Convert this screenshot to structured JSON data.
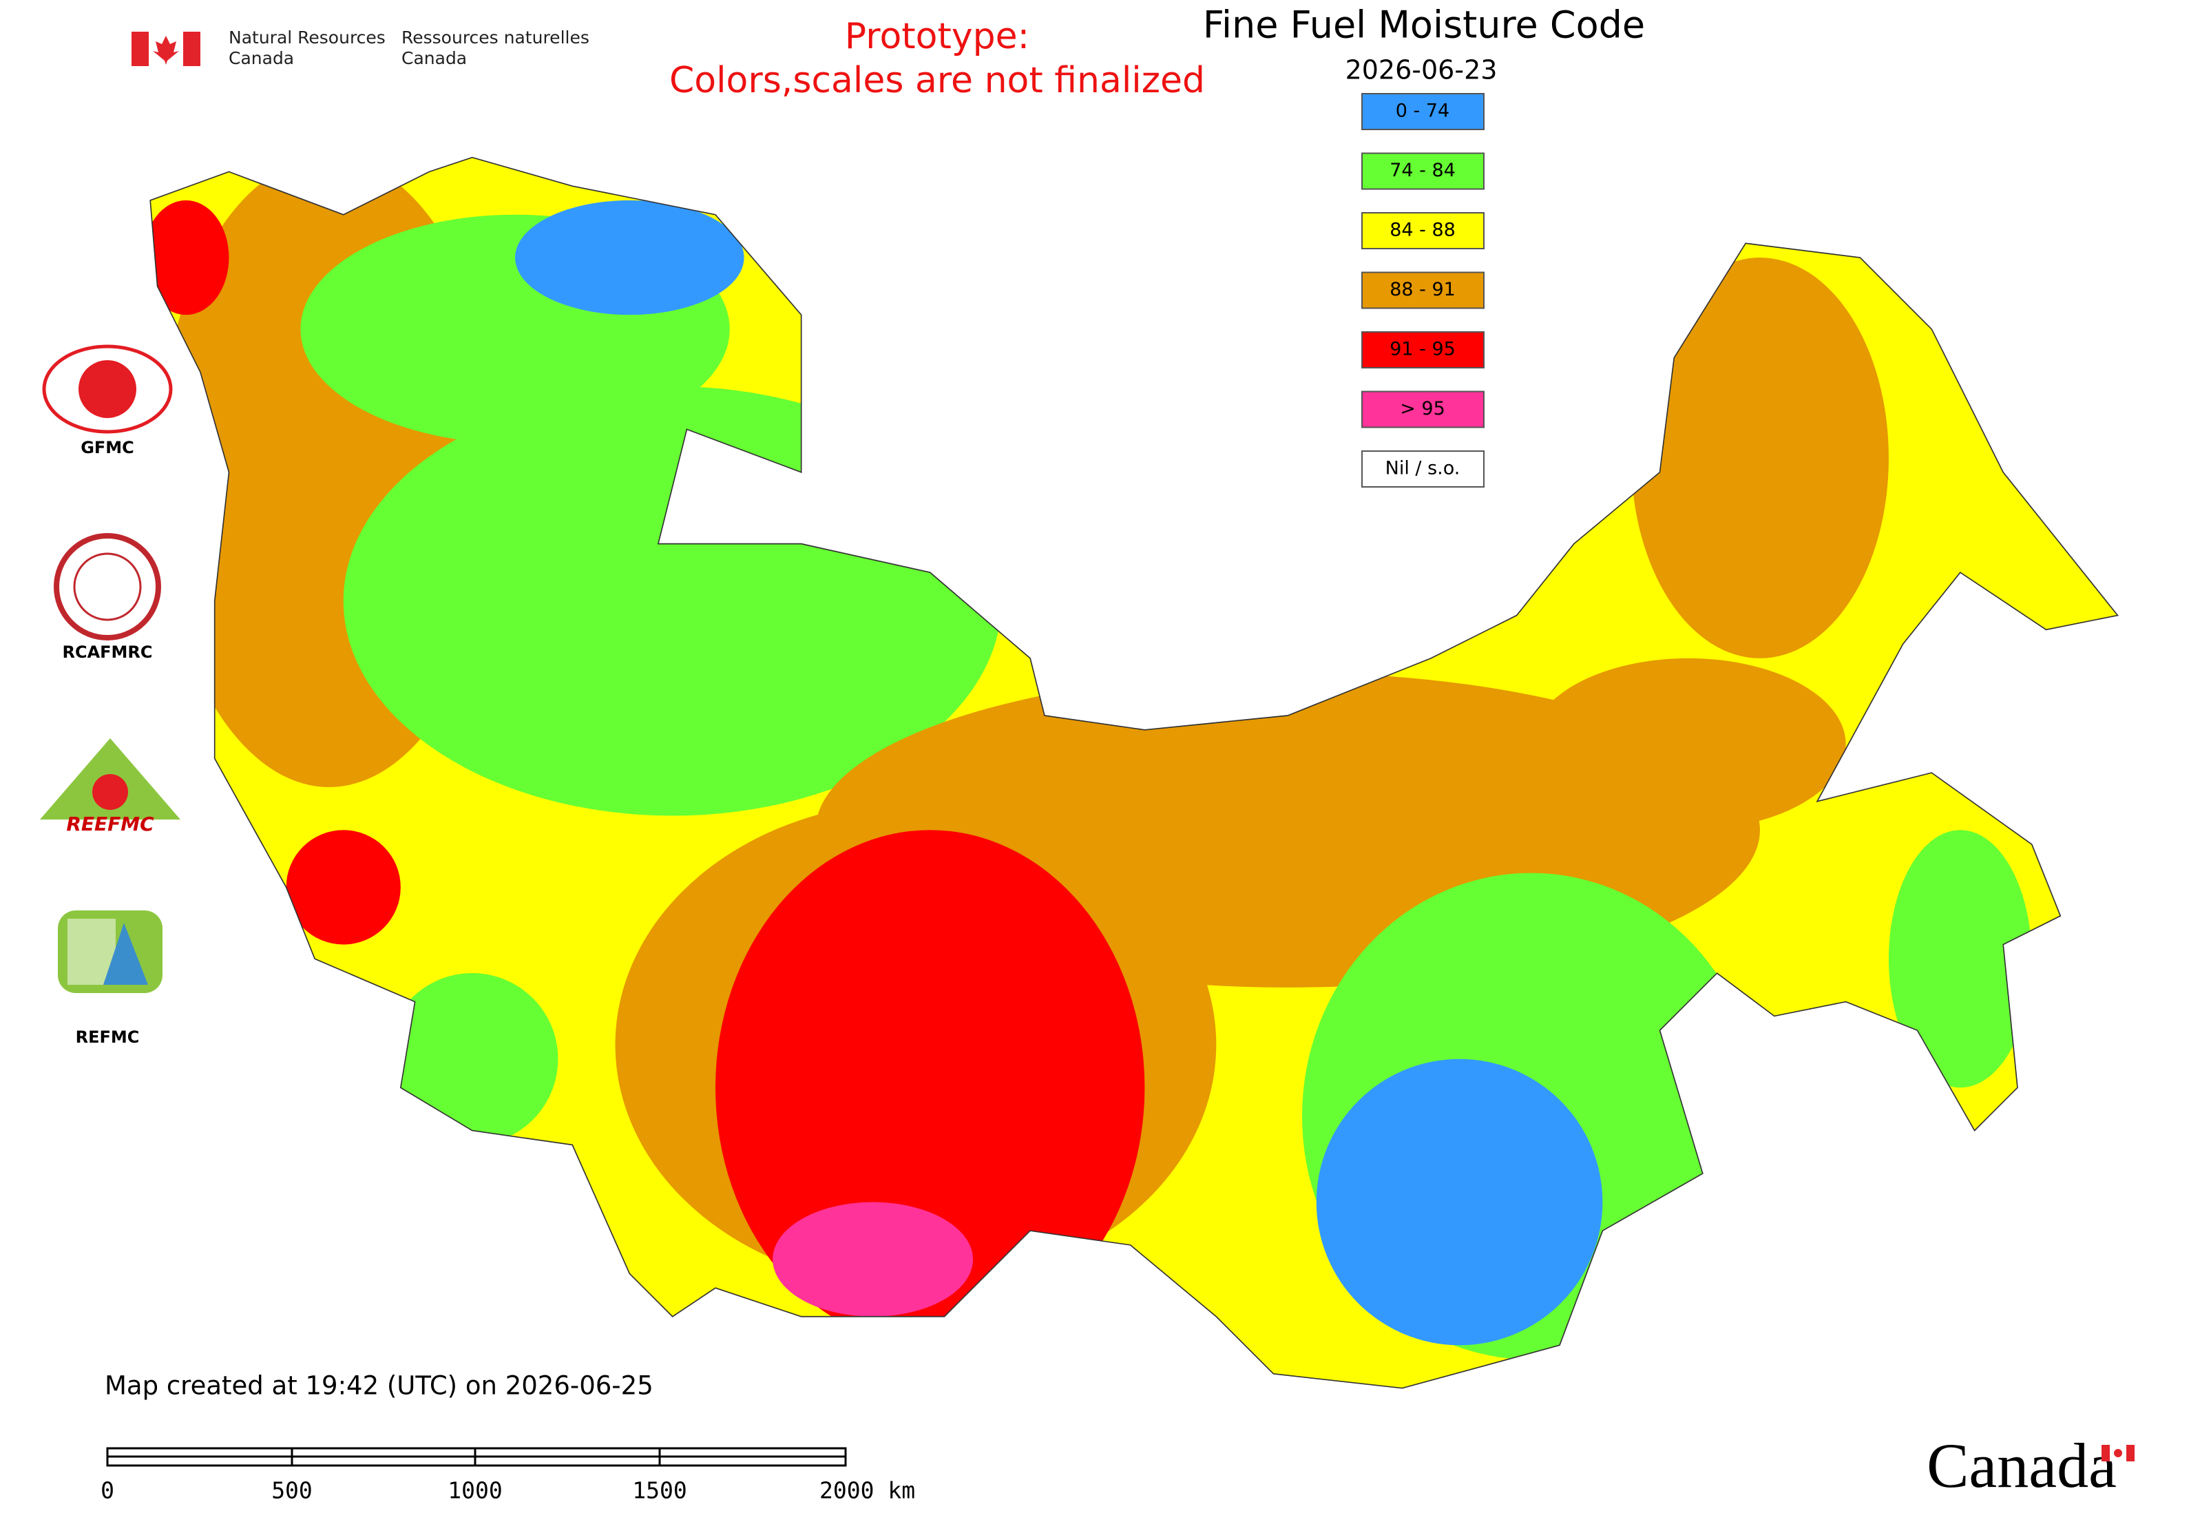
{
  "header": {
    "agency_en": [
      "Natural Resources",
      "Canada"
    ],
    "agency_fr": [
      "Ressources naturelles",
      "Canada"
    ]
  },
  "notice": [
    "Prototype:",
    "Colors,scales are not finalized"
  ],
  "title": "Fine Fuel Moisture Code",
  "date": "2026-06-23",
  "legend": [
    {
      "label": "0 - 74",
      "color": "#3399ff"
    },
    {
      "label": "74 - 84",
      "color": "#66ff33"
    },
    {
      "label": "84 - 88",
      "color": "#ffff00"
    },
    {
      "label": "88 - 91",
      "color": "#e69900"
    },
    {
      "label": "91 - 95",
      "color": "#ff0000"
    },
    {
      "label": "> 95",
      "color": "#ff3399"
    },
    {
      "label": "Nil / s.o.",
      "color": "#ffffff"
    }
  ],
  "logos": [
    "GFMC",
    "RCAFMRC",
    "REEFMC",
    "REFMC"
  ],
  "footer": {
    "created": "Map created at 19:42 (UTC) on 2026-06-25",
    "scale_labels": [
      "0",
      "500",
      "1000",
      "1500",
      "2000 km"
    ],
    "wordmark": "Canada"
  }
}
